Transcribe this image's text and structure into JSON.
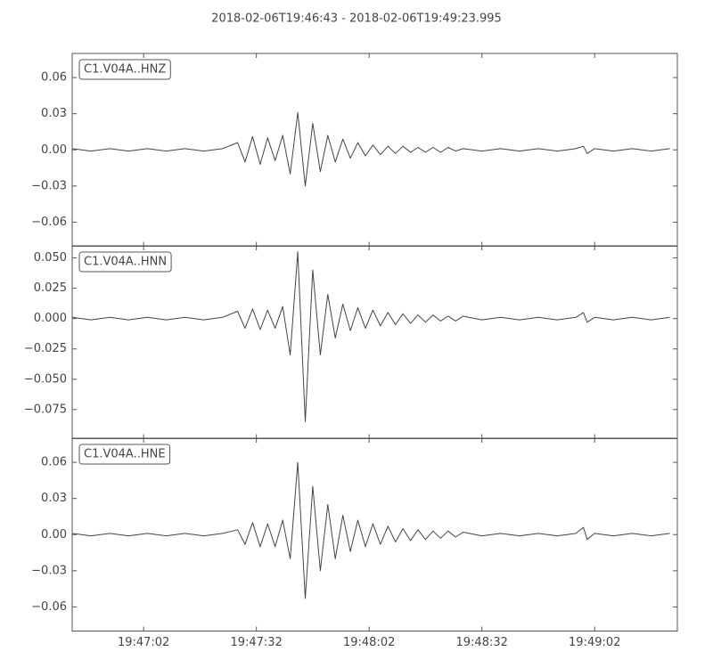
{
  "chart_data": {
    "type": "line",
    "title": "2018-02-06T19:46:43  -  2018-02-06T19:49:23.995",
    "color": "#444444",
    "xlim": [
      "19:46:43",
      "19:49:23.995"
    ],
    "xticks": [
      "19:47:02",
      "19:47:32",
      "19:48:02",
      "19:48:32",
      "19:49:02"
    ],
    "x": [
      "19:46:43",
      "19:46:48",
      "19:46:53",
      "19:46:58",
      "19:47:03",
      "19:47:08",
      "19:47:13",
      "19:47:18",
      "19:47:23",
      "19:47:27",
      "19:47:29",
      "19:47:31",
      "19:47:33",
      "19:47:35",
      "19:47:37",
      "19:47:39",
      "19:47:41",
      "19:47:43",
      "19:47:45",
      "19:47:47",
      "19:47:49",
      "19:47:51",
      "19:47:53",
      "19:47:55",
      "19:47:57",
      "19:47:59",
      "19:48:01",
      "19:48:03",
      "19:48:05",
      "19:48:07",
      "19:48:09",
      "19:48:11",
      "19:48:13",
      "19:48:15",
      "19:48:17",
      "19:48:19",
      "19:48:21",
      "19:48:23",
      "19:48:25",
      "19:48:27",
      "19:48:32",
      "19:48:37",
      "19:48:42",
      "19:48:47",
      "19:48:52",
      "19:48:57",
      "19:48:59",
      "19:49:00",
      "19:49:02",
      "19:49:07",
      "19:49:12",
      "19:49:17",
      "19:49:22"
    ],
    "panels": [
      {
        "label": "C1.V04A..HNZ",
        "ylim": [
          -0.08,
          0.08
        ],
        "yticks": [
          {
            "value": 0.06,
            "label": "0.06"
          },
          {
            "value": 0.03,
            "label": "0.03"
          },
          {
            "value": 0,
            "label": "0.00"
          },
          {
            "value": -0.03,
            "label": "−0.03"
          },
          {
            "value": -0.06,
            "label": "−0.06"
          }
        ],
        "values": [
          0.001,
          -0.001,
          0.001,
          -0.001,
          0.001,
          -0.001,
          0.001,
          -0.001,
          0.001,
          0.006,
          -0.01,
          0.011,
          -0.012,
          0.01,
          -0.009,
          0.012,
          -0.02,
          0.031,
          -0.03,
          0.022,
          -0.018,
          0.012,
          -0.01,
          0.009,
          -0.007,
          0.006,
          -0.005,
          0.004,
          -0.004,
          0.003,
          -0.003,
          0.003,
          -0.002,
          0.002,
          -0.002,
          0.002,
          -0.002,
          0.002,
          -0.001,
          0.001,
          -0.001,
          0.001,
          -0.001,
          0.001,
          -0.001,
          0.001,
          0.003,
          -0.003,
          0.001,
          -0.001,
          0.001,
          -0.001,
          0.001
        ]
      },
      {
        "label": "C1.V04A..HNN",
        "ylim": [
          -0.099,
          0.06
        ],
        "yticks": [
          {
            "value": 0.05,
            "label": "0.050"
          },
          {
            "value": 0.025,
            "label": "0.025"
          },
          {
            "value": 0,
            "label": "0.000"
          },
          {
            "value": -0.025,
            "label": "−0.025"
          },
          {
            "value": -0.05,
            "label": "−0.050"
          },
          {
            "value": -0.075,
            "label": "−0.075"
          }
        ],
        "values": [
          0.001,
          -0.001,
          0.001,
          -0.001,
          0.001,
          -0.001,
          0.001,
          -0.001,
          0.001,
          0.006,
          -0.008,
          0.008,
          -0.009,
          0.007,
          -0.008,
          0.01,
          -0.03,
          0.055,
          -0.085,
          0.04,
          -0.03,
          0.02,
          -0.016,
          0.012,
          -0.01,
          0.009,
          -0.008,
          0.007,
          -0.006,
          0.005,
          -0.005,
          0.004,
          -0.004,
          0.003,
          -0.003,
          0.003,
          -0.002,
          0.002,
          -0.002,
          0.002,
          -0.001,
          0.001,
          -0.001,
          0.001,
          -0.001,
          0.001,
          0.005,
          -0.003,
          0.001,
          -0.001,
          0.001,
          -0.001,
          0.001
        ]
      },
      {
        "label": "C1.V04A..HNE",
        "ylim": [
          -0.08,
          0.08
        ],
        "yticks": [
          {
            "value": 0.06,
            "label": "0.06"
          },
          {
            "value": 0.03,
            "label": "0.03"
          },
          {
            "value": 0,
            "label": "0.00"
          },
          {
            "value": -0.03,
            "label": "−0.03"
          },
          {
            "value": -0.06,
            "label": "−0.06"
          }
        ],
        "values": [
          0.001,
          -0.001,
          0.001,
          -0.001,
          0.001,
          -0.001,
          0.001,
          -0.001,
          0.001,
          0.004,
          -0.008,
          0.01,
          -0.01,
          0.009,
          -0.01,
          0.012,
          -0.02,
          0.06,
          -0.053,
          0.04,
          -0.03,
          0.025,
          -0.02,
          0.016,
          -0.014,
          0.012,
          -0.01,
          0.009,
          -0.008,
          0.007,
          -0.006,
          0.005,
          -0.005,
          0.004,
          -0.004,
          0.003,
          -0.003,
          0.003,
          -0.002,
          0.002,
          -0.001,
          0.001,
          -0.001,
          0.001,
          -0.001,
          0.001,
          0.006,
          -0.004,
          0.001,
          -0.001,
          0.001,
          -0.001,
          0.001
        ]
      }
    ]
  }
}
